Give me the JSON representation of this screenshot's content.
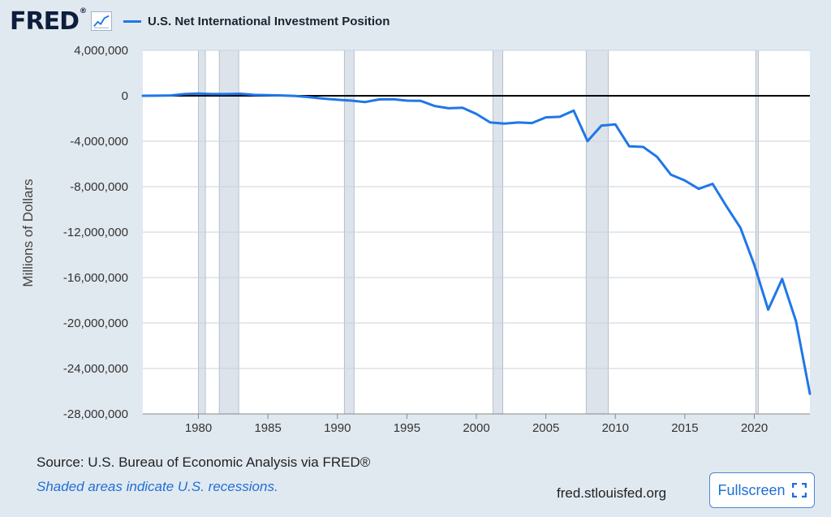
{
  "header": {
    "logo": "FRED",
    "logo_mark": "®",
    "logo_icon": "line-chart-icon",
    "series_label": "U.S. Net International Investment Position"
  },
  "colors": {
    "line": "#1f77e8",
    "recession": "#dde3ea",
    "background": "#e1e9f0",
    "plot_bg": "#ffffff",
    "zero_line": "#000000"
  },
  "chart_data": {
    "type": "line",
    "title": "U.S. Net International Investment Position",
    "xlabel": "",
    "ylabel": "Millions of Dollars",
    "xlim": [
      1976,
      2024
    ],
    "ylim": [
      -28000000,
      4000000
    ],
    "x_ticks": [
      1980,
      1985,
      1990,
      1995,
      2000,
      2005,
      2010,
      2015,
      2020
    ],
    "y_ticks": [
      4000000,
      0,
      -4000000,
      -8000000,
      -12000000,
      -16000000,
      -20000000,
      -24000000,
      -28000000
    ],
    "y_tick_labels": [
      "4,000,000",
      "0",
      "-4,000,000",
      "-8,000,000",
      "-12,000,000",
      "-16,000,000",
      "-20,000,000",
      "-24,000,000",
      "-28,000,000"
    ],
    "recessions": [
      [
        1980.0,
        1980.5
      ],
      [
        1981.5,
        1982.9
      ],
      [
        1990.5,
        1991.2
      ],
      [
        2001.2,
        2001.9
      ],
      [
        2007.9,
        2009.5
      ],
      [
        2020.1,
        2020.3
      ]
    ],
    "series": [
      {
        "name": "U.S. Net International Investment Position",
        "x": [
          1976,
          1977,
          1978,
          1979,
          1980,
          1981,
          1982,
          1983,
          1984,
          1985,
          1986,
          1987,
          1988,
          1989,
          1990,
          1991,
          1992,
          1993,
          1994,
          1995,
          1996,
          1997,
          1998,
          1999,
          2000,
          2001,
          2002,
          2003,
          2004,
          2005,
          2006,
          2007,
          2008,
          2009,
          2010,
          2011,
          2012,
          2013,
          2014,
          2015,
          2016,
          2017,
          2018,
          2019,
          2020,
          2021,
          2022,
          2023,
          2024
        ],
        "values": [
          0,
          10000,
          30000,
          150000,
          200000,
          150000,
          150000,
          180000,
          80000,
          50000,
          30000,
          -20000,
          -120000,
          -250000,
          -350000,
          -430000,
          -550000,
          -320000,
          -300000,
          -430000,
          -450000,
          -900000,
          -1100000,
          -1050000,
          -1600000,
          -2350000,
          -2450000,
          -2350000,
          -2400000,
          -1900000,
          -1850000,
          -1300000,
          -3990000,
          -2630000,
          -2520000,
          -4450000,
          -4500000,
          -5370000,
          -6950000,
          -7460000,
          -8190000,
          -7750000,
          -9740000,
          -11620000,
          -14880000,
          -18820000,
          -16120000,
          -19850000,
          -26230000
        ]
      }
    ]
  },
  "footer": {
    "source": "Source: U.S. Bureau of Economic Analysis via FRED®",
    "note": "Shaded areas indicate U.S. recessions.",
    "site": "fred.stlouisfed.org",
    "fullscreen_label": "Fullscreen",
    "fullscreen_icon": "expand-icon"
  }
}
